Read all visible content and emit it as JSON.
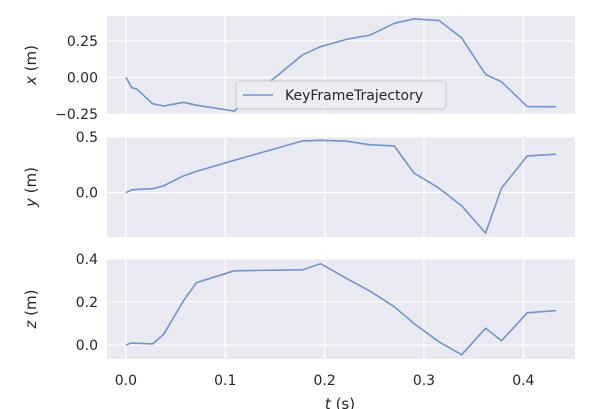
{
  "chart_data": [
    {
      "type": "line",
      "ylabel": "x (m)",
      "ylabel_var": "x",
      "ylabel_unit": " (m)",
      "ylim": [
        -0.25,
        0.42
      ],
      "yticks": [
        0.25,
        0.0,
        -0.25
      ],
      "ytick_labels": [
        "0.25",
        "0.00",
        "−0.25"
      ],
      "legend": {
        "label": "KeyFrameTrajectory",
        "placement": "center"
      },
      "series": [
        {
          "name": "KeyFrameTrajectory",
          "x": [
            0.0,
            0.006,
            0.011,
            0.027,
            0.038,
            0.058,
            0.071,
            0.109,
            0.178,
            0.196,
            0.222,
            0.246,
            0.27,
            0.29,
            0.315,
            0.338,
            0.362,
            0.378,
            0.404,
            0.433
          ],
          "y": [
            0.0,
            -0.07,
            -0.08,
            -0.18,
            -0.195,
            -0.17,
            -0.19,
            -0.23,
            0.155,
            0.21,
            0.26,
            0.29,
            0.37,
            0.4,
            0.39,
            0.27,
            0.02,
            -0.03,
            -0.2,
            -0.2
          ]
        }
      ]
    },
    {
      "type": "line",
      "ylabel": "y (m)",
      "ylabel_var": "y",
      "ylabel_unit": " (m)",
      "ylim": [
        -0.4,
        0.5
      ],
      "yticks": [
        0.5,
        0.0
      ],
      "ytick_labels": [
        "0.5",
        "0.0"
      ],
      "series": [
        {
          "name": "KeyFrameTrajectory",
          "x": [
            0.0,
            0.006,
            0.011,
            0.027,
            0.038,
            0.058,
            0.071,
            0.109,
            0.178,
            0.196,
            0.222,
            0.246,
            0.27,
            0.29,
            0.315,
            0.338,
            0.362,
            0.378,
            0.404,
            0.433
          ],
          "y": [
            0.0,
            0.025,
            0.028,
            0.035,
            0.06,
            0.15,
            0.19,
            0.29,
            0.465,
            0.47,
            0.462,
            0.43,
            0.42,
            0.175,
            0.04,
            -0.12,
            -0.365,
            0.04,
            0.33,
            0.345
          ]
        }
      ]
    },
    {
      "type": "line",
      "ylabel": "z (m)",
      "ylabel_var": "z",
      "ylabel_unit": " (m)",
      "ylim": [
        -0.065,
        0.4
      ],
      "yticks": [
        0.4,
        0.2,
        0.0
      ],
      "ytick_labels": [
        "0.4",
        "0.2",
        "0.0"
      ],
      "xlim": [
        -0.019,
        0.452
      ],
      "xticks": [
        0.0,
        0.1,
        0.2,
        0.3,
        0.4
      ],
      "xtick_labels": [
        "0.0",
        "0.1",
        "0.2",
        "0.3",
        "0.4"
      ],
      "xlabel": "t (s)",
      "xlabel_var": "t",
      "xlabel_unit": " (s)",
      "series": [
        {
          "name": "KeyFrameTrajectory",
          "x": [
            0.0,
            0.006,
            0.011,
            0.027,
            0.038,
            0.058,
            0.071,
            0.109,
            0.178,
            0.196,
            0.222,
            0.246,
            0.27,
            0.29,
            0.315,
            0.338,
            0.362,
            0.378,
            0.404,
            0.433
          ],
          "y": [
            0.0,
            0.01,
            0.008,
            0.005,
            0.05,
            0.205,
            0.29,
            0.345,
            0.35,
            0.378,
            0.31,
            0.25,
            0.178,
            0.1,
            0.015,
            -0.045,
            0.078,
            0.02,
            0.15,
            0.16
          ]
        }
      ]
    }
  ],
  "colors": {
    "line": "#7393cc",
    "panel": "#e9e9f1",
    "grid": "#ffffff",
    "text": "#262626",
    "legend_bg": "#ececf3",
    "legend_border": "#cccccc"
  },
  "grid": true
}
